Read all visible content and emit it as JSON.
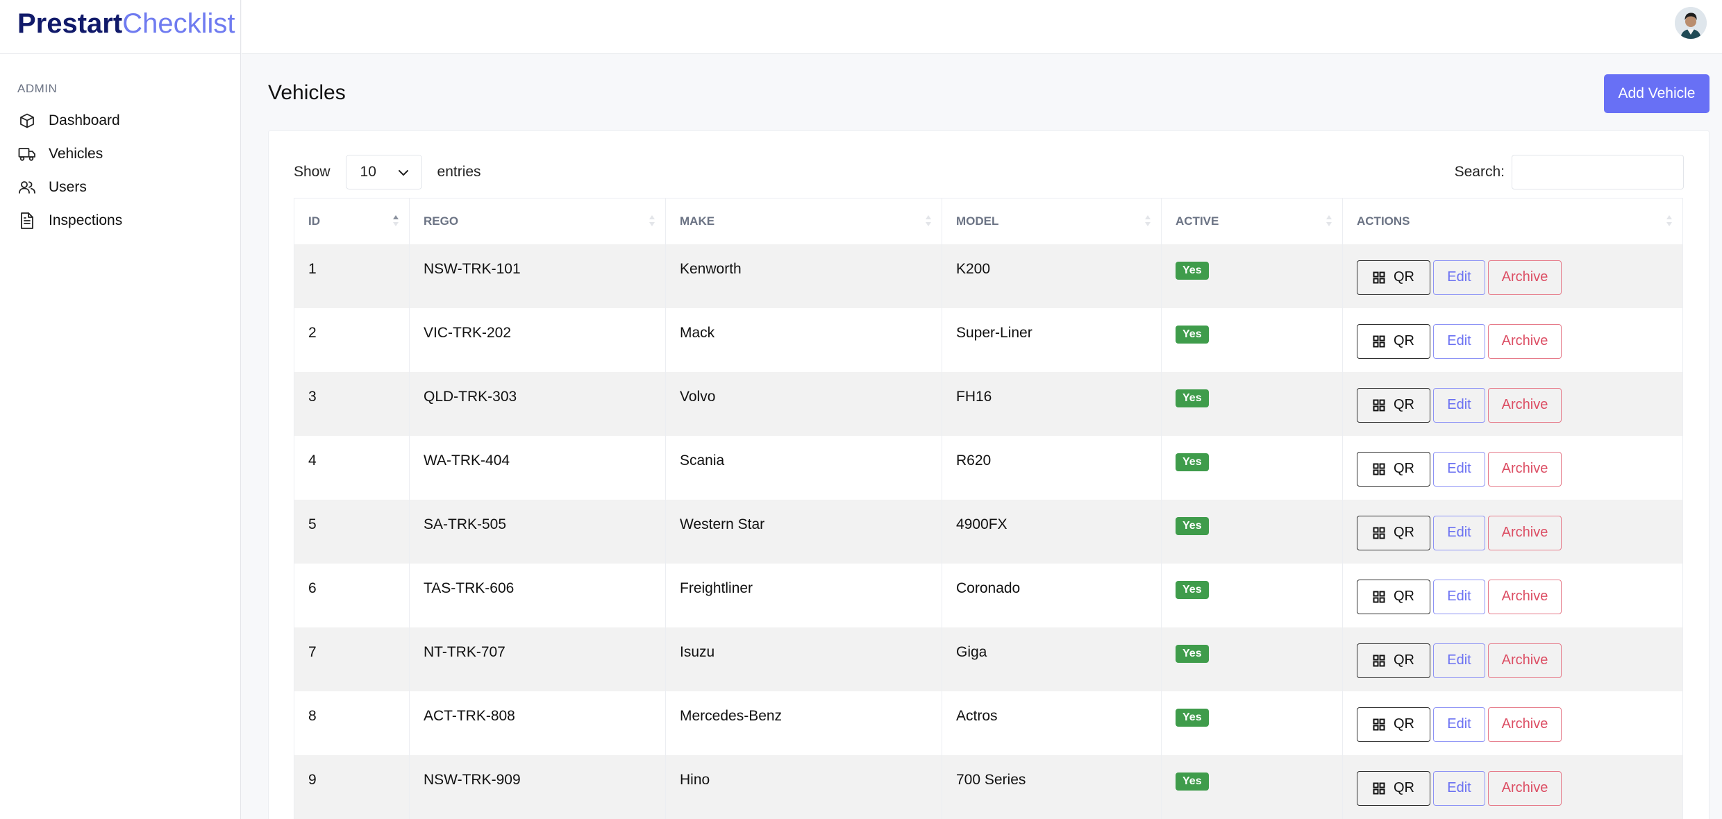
{
  "brand": {
    "bold": "Prestart",
    "light": "Checklist"
  },
  "sidebar": {
    "section": "ADMIN",
    "items": [
      {
        "label": "Dashboard",
        "icon": "cube-icon"
      },
      {
        "label": "Vehicles",
        "icon": "truck-icon"
      },
      {
        "label": "Users",
        "icon": "users-icon"
      },
      {
        "label": "Inspections",
        "icon": "document-icon"
      }
    ]
  },
  "header": {
    "avatar": "user-avatar"
  },
  "page": {
    "title": "Vehicles",
    "add_button": "Add Vehicle"
  },
  "controls": {
    "show_label": "Show",
    "page_length": "10",
    "entries_label": "entries",
    "search_label": "Search:",
    "search_value": ""
  },
  "table": {
    "columns": [
      "ID",
      "REGO",
      "MAKE",
      "MODEL",
      "ACTIVE",
      "ACTIONS"
    ],
    "rows": [
      {
        "id": "1",
        "rego": "NSW-TRK-101",
        "make": "Kenworth",
        "model": "K200",
        "active": "Yes"
      },
      {
        "id": "2",
        "rego": "VIC-TRK-202",
        "make": "Mack",
        "model": "Super-Liner",
        "active": "Yes"
      },
      {
        "id": "3",
        "rego": "QLD-TRK-303",
        "make": "Volvo",
        "model": "FH16",
        "active": "Yes"
      },
      {
        "id": "4",
        "rego": "WA-TRK-404",
        "make": "Scania",
        "model": "R620",
        "active": "Yes"
      },
      {
        "id": "5",
        "rego": "SA-TRK-505",
        "make": "Western Star",
        "model": "4900FX",
        "active": "Yes"
      },
      {
        "id": "6",
        "rego": "TAS-TRK-606",
        "make": "Freightliner",
        "model": "Coronado",
        "active": "Yes"
      },
      {
        "id": "7",
        "rego": "NT-TRK-707",
        "make": "Isuzu",
        "model": "Giga",
        "active": "Yes"
      },
      {
        "id": "8",
        "rego": "ACT-TRK-808",
        "make": "Mercedes-Benz",
        "model": "Actros",
        "active": "Yes"
      },
      {
        "id": "9",
        "rego": "NSW-TRK-909",
        "make": "Hino",
        "model": "700 Series",
        "active": "Yes"
      }
    ],
    "actions": {
      "qr": "QR",
      "edit": "Edit",
      "archive": "Archive"
    }
  },
  "colors": {
    "brand_dark": "#111a6a",
    "brand_light": "#6f7bf0",
    "primary": "#6870f5",
    "success": "#3f9c4b",
    "danger": "#dc4d63"
  }
}
